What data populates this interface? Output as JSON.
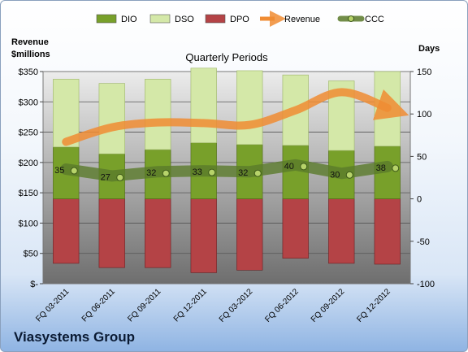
{
  "company_name": "Viasystems Group",
  "chart_data": {
    "type": "bar",
    "title": "Quarterly Periods",
    "ylabel_left_line1": "Revenue",
    "ylabel_left_line2": "$millions",
    "ylabel_right": "Days",
    "categories": [
      "FQ 03-2011",
      "FQ 06-2011",
      "FQ 09-2011",
      "FQ 12-2011",
      "FQ 03-2012",
      "FQ 06-2012",
      "FQ 09-2012",
      "FQ 12-2012"
    ],
    "left_axis": {
      "min": 0,
      "max": 350,
      "step": 50,
      "tick_labels": [
        "$-",
        "$50",
        "$100",
        "$150",
        "$200",
        "$250",
        "$300",
        "$350"
      ]
    },
    "right_axis": {
      "min": -100,
      "max": 150,
      "step": 50,
      "tick_labels": [
        "-100",
        "-50",
        "0",
        "50",
        "100",
        "150"
      ]
    },
    "legend_position": "top",
    "grid": true,
    "series": [
      {
        "name": "DIO",
        "kind": "bar",
        "axis": "right",
        "color": "#78a02a",
        "values": [
          61,
          53,
          58,
          66,
          64,
          63,
          57,
          62
        ]
      },
      {
        "name": "DSO",
        "kind": "bar",
        "axis": "right",
        "color": "#d4e8a8",
        "values": [
          80,
          83,
          83,
          88,
          87,
          83,
          82,
          88
        ]
      },
      {
        "name": "DPO",
        "kind": "bar",
        "axis": "right",
        "color": "#b44346",
        "values": [
          -76,
          -81,
          -81,
          -87,
          -84,
          -70,
          -76,
          -77
        ]
      },
      {
        "name": "Revenue",
        "kind": "line",
        "axis": "left",
        "color": "#f08c33",
        "values": [
          234,
          258,
          266,
          265,
          262,
          286,
          316,
          290
        ]
      },
      {
        "name": "CCC",
        "kind": "line",
        "axis": "right",
        "color": "#5a7a2a",
        "values": [
          35,
          27,
          32,
          33,
          32,
          40,
          30,
          38
        ],
        "labels": [
          "35",
          "27",
          "32",
          "33",
          "32",
          "40",
          "30",
          "38"
        ]
      }
    ]
  }
}
